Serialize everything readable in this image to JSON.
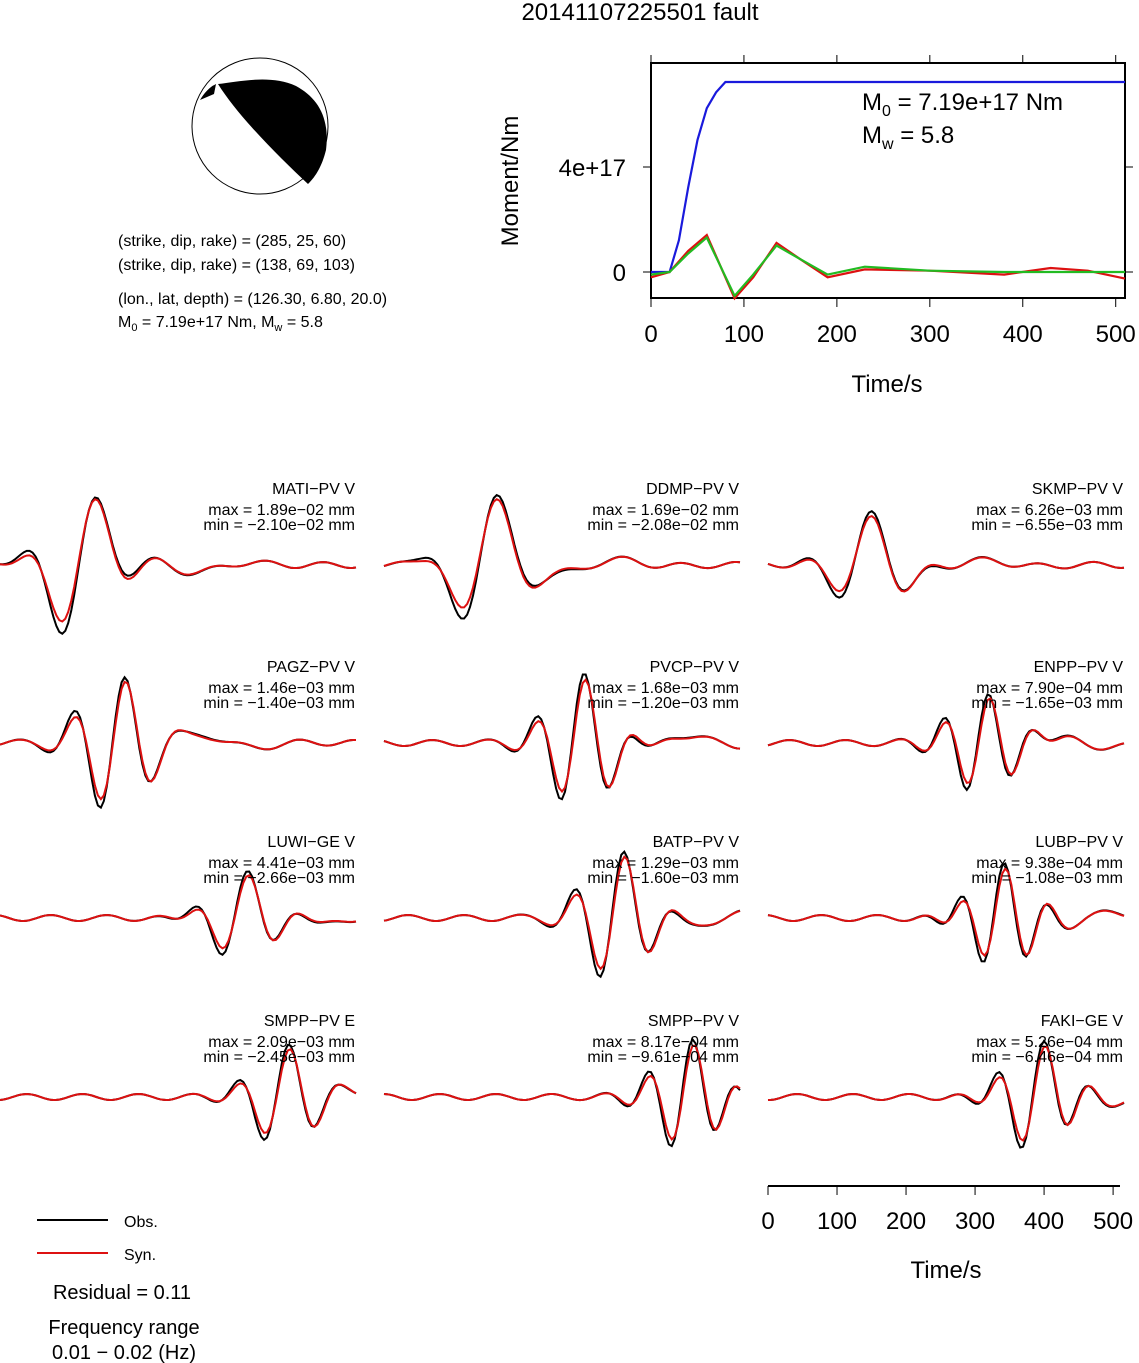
{
  "title": "20141107225501 fault",
  "mechanism": {
    "line1": "(strike, dip, rake) = (285, 25, 60)",
    "line2": "(strike, dip, rake) = (138, 69, 103)",
    "line3": "(lon., lat, depth) = (126.30, 6.80, 20.0)",
    "m0_prefix": "M",
    "m0_sub": "0",
    "m0_rest": " = 7.19e+17 Nm, M",
    "mw_sub": "w",
    "mw_rest": " = 5.8"
  },
  "moment_chart": {
    "ylabel": "Moment/Nm",
    "xlabel": "Time/s",
    "m0_label_pre": "M",
    "m0_label_sub": "0",
    "m0_label_post": " = 7.19e+17 Nm",
    "mw_label_pre": "M",
    "mw_label_sub": "w",
    "mw_label_post": " = 5.8",
    "xticks": [
      "0",
      "100",
      "200",
      "300",
      "400",
      "500"
    ],
    "yticks": [
      "0",
      "4e+17"
    ]
  },
  "chart_data": [
    {
      "type": "line",
      "title": "",
      "xlabel": "Time/s",
      "ylabel": "Moment/Nm",
      "xlim": [
        0,
        510
      ],
      "ylim": [
        -1e+17,
        8e+17
      ],
      "series": [
        {
          "color": "#1a1adc",
          "x": [
            0,
            20,
            30,
            40,
            50,
            60,
            70,
            80,
            100,
            200,
            300,
            400,
            510
          ],
          "values": [
            0,
            0,
            1.2e+17,
            3.2e+17,
            5e+17,
            6.2e+17,
            6.8e+17,
            7.19e+17,
            7.19e+17,
            7.19e+17,
            7.19e+17,
            7.19e+17,
            7.19e+17
          ]
        },
        {
          "color": "#dd1111",
          "x": [
            0,
            20,
            40,
            60,
            75,
            90,
            110,
            135,
            160,
            190,
            230,
            300,
            380,
            430,
            470,
            510
          ],
          "values": [
            -2e+16,
            0,
            8e+16,
            1.4e+17,
            2e+16,
            -1e+17,
            -2e+16,
            1.1e+17,
            5e+16,
            -2e+16,
            1e+16,
            5000000000000000.0,
            -1e+16,
            1.5e+16,
            5000000000000000.0,
            -2.5e+16
          ]
        },
        {
          "color": "#22bb22",
          "x": [
            0,
            20,
            40,
            60,
            75,
            90,
            110,
            135,
            160,
            190,
            230,
            300,
            380,
            430,
            470,
            510
          ],
          "values": [
            -1e+16,
            0,
            7e+16,
            1.3e+17,
            2e+16,
            -9e+16,
            -1e+16,
            1e+17,
            5e+16,
            -1e+16,
            2e+16,
            5000000000000000.0,
            0,
            0,
            0,
            0
          ]
        }
      ]
    }
  ],
  "stations": [
    {
      "name": "MATI−PV V",
      "max": "max = 1.89e−02 mm",
      "min": "min = −2.10e−02 mm"
    },
    {
      "name": "DDMP−PV V",
      "max": "max = 1.69e−02 mm",
      "min": "min = −2.08e−02 mm"
    },
    {
      "name": "SKMP−PV V",
      "max": "max = 6.26e−03 mm",
      "min": "min = −6.55e−03 mm"
    },
    {
      "name": "PAGZ−PV V",
      "max": "max = 1.46e−03 mm",
      "min": "min = −1.40e−03 mm"
    },
    {
      "name": "PVCP−PV V",
      "max": "max = 1.68e−03 mm",
      "min": "min = −1.20e−03 mm"
    },
    {
      "name": "ENPP−PV V",
      "max": "max = 7.90e−04 mm",
      "min": "min = −1.65e−03 mm"
    },
    {
      "name": "LUWI−GE V",
      "max": "max = 4.41e−03 mm",
      "min": "min = −2.66e−03 mm"
    },
    {
      "name": "BATP−PV V",
      "max": "max = 1.29e−03 mm",
      "min": "min = −1.60e−03 mm"
    },
    {
      "name": "LUBP−PV V",
      "max": "max = 9.38e−04 mm",
      "min": "min = −1.08e−03 mm"
    },
    {
      "name": "SMPP−PV E",
      "max": "max = 2.09e−03 mm",
      "min": "min = −2.45e−03 mm"
    },
    {
      "name": "SMPP−PV V",
      "max": "max = 8.17e−04 mm",
      "min": "min = −9.61e−04 mm"
    },
    {
      "name": "FAKI−GE V",
      "max": "max = 5.26e−04 mm",
      "min": "min = −6.46e−04 mm"
    }
  ],
  "waveform_axis": {
    "xlabel": "Time/s",
    "xticks": [
      "0",
      "100",
      "200",
      "300",
      "400",
      "500"
    ]
  },
  "legend": {
    "obs": "Obs.",
    "syn": "Syn.",
    "obs_color": "#000000",
    "syn_color": "#dd1111"
  },
  "residual": "Residual = 0.11",
  "freq_label": "Frequency range",
  "freq_value": "0.01 − 0.02 (Hz)"
}
